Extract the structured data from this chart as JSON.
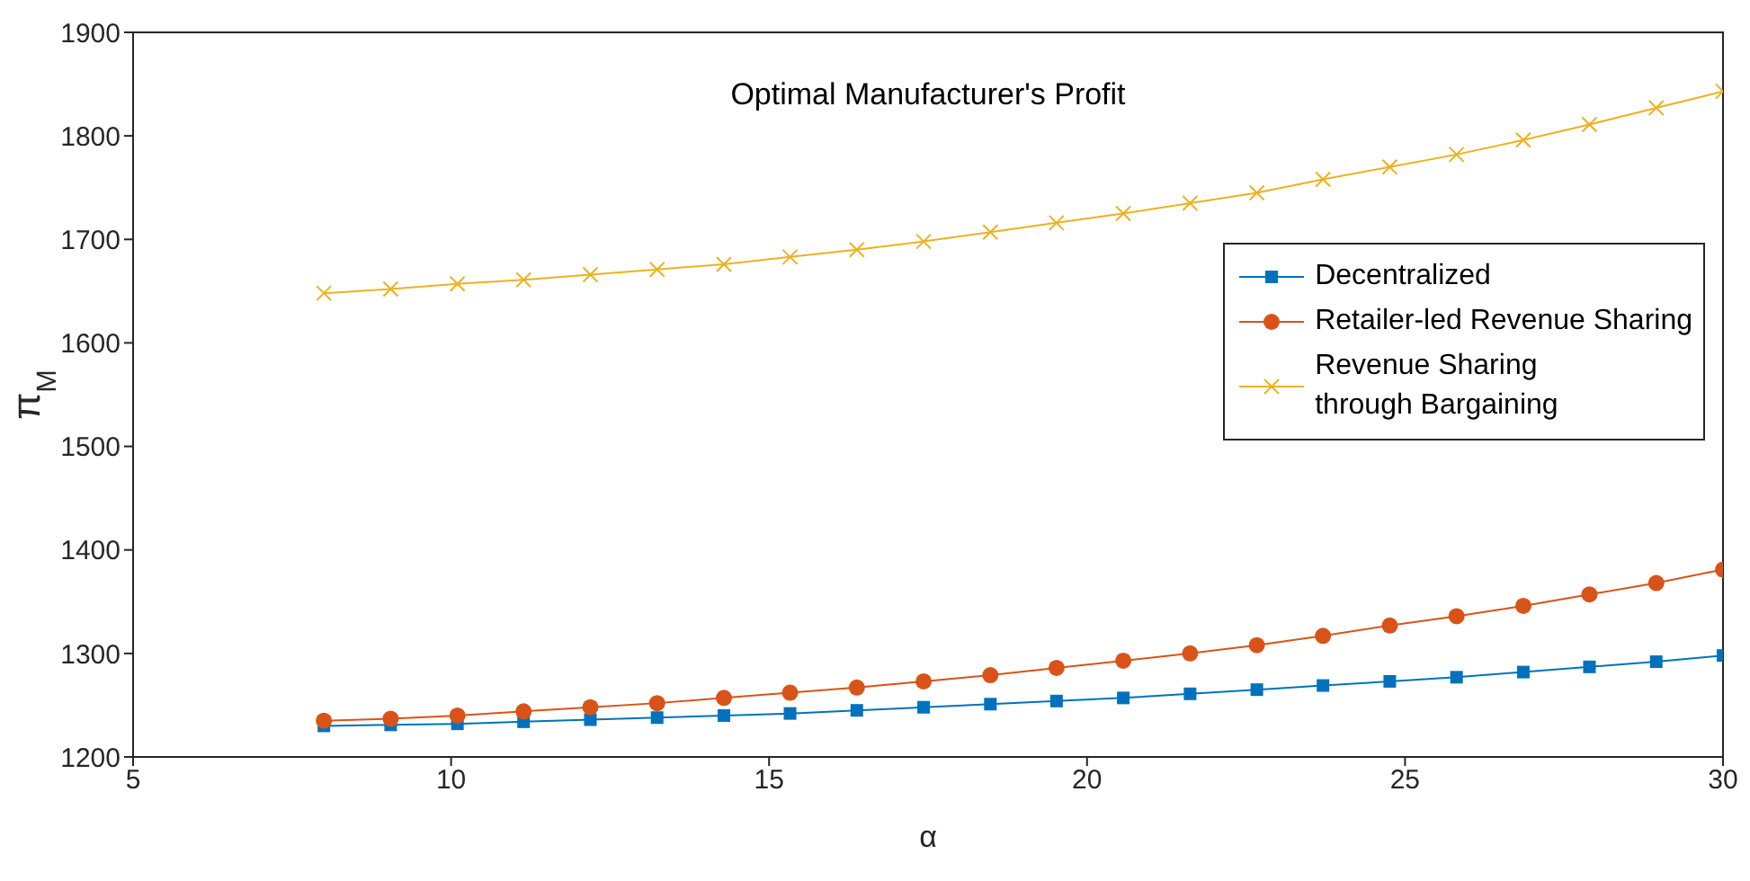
{
  "chart_data": {
    "type": "line",
    "title": "Optimal Manufacturer's Profit",
    "xlabel": "α",
    "ylabel": "π$_{M}$",
    "x": [
      8,
      9.05,
      10.1,
      11.14,
      12.19,
      13.24,
      14.29,
      15.33,
      16.38,
      17.43,
      18.48,
      19.52,
      20.57,
      21.62,
      22.67,
      23.71,
      24.76,
      25.81,
      26.86,
      27.9,
      28.95,
      30
    ],
    "series": [
      {
        "name": "Decentralized",
        "color": "#0072bd",
        "marker": "square",
        "values": [
          1230,
          1231,
          1232,
          1234,
          1236,
          1238,
          1240,
          1242,
          1245,
          1248,
          1251,
          1254,
          1257,
          1261,
          1265,
          1269,
          1273,
          1277,
          1282,
          1287,
          1292,
          1298
        ]
      },
      {
        "name": "Retailer-led Revenue Sharing",
        "color": "#d95319",
        "marker": "circle",
        "values": [
          1235,
          1237,
          1240,
          1244,
          1248,
          1252,
          1257,
          1262,
          1267,
          1273,
          1279,
          1286,
          1293,
          1300,
          1308,
          1317,
          1327,
          1336,
          1346,
          1357,
          1368,
          1381
        ]
      },
      {
        "name": "Revenue Sharing\nthrough Bargaining",
        "color": "#edb120",
        "marker": "cross",
        "values": [
          1648,
          1652,
          1657,
          1661,
          1666,
          1671,
          1676,
          1683,
          1690,
          1698,
          1707,
          1716,
          1725,
          1735,
          1745,
          1758,
          1770,
          1782,
          1796,
          1811,
          1827,
          1843
        ]
      }
    ],
    "xlim": [
      5,
      30
    ],
    "xticks": [
      5,
      10,
      15,
      20,
      25,
      30
    ],
    "ylim": [
      1200,
      1900
    ],
    "yticks": [
      1200,
      1300,
      1400,
      1500,
      1600,
      1700,
      1800,
      1900
    ],
    "grid": false,
    "legend": "right"
  }
}
